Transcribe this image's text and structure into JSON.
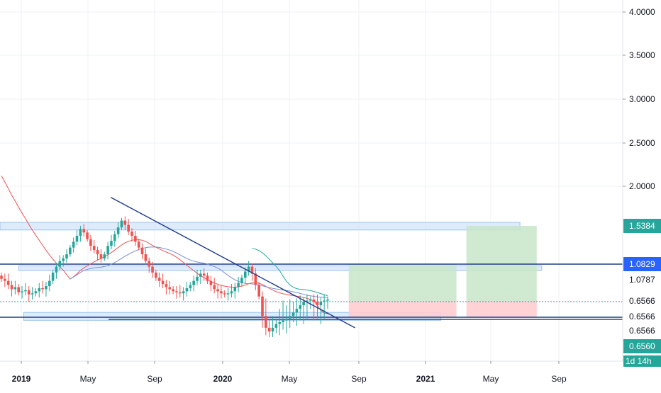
{
  "chart_data": {
    "type": "candlestick",
    "price_axis": {
      "ticks": [
        4.0,
        3.5,
        3.0,
        2.5,
        2.0
      ],
      "tick_labels": [
        "4.0000",
        "3.5000",
        "3.0000",
        "2.5000",
        "2.0000"
      ],
      "ylim_top": 4.06,
      "scale_note": "log-like below 2.0"
    },
    "time_axis": {
      "tick_labels": [
        "2019",
        "May",
        "Sep",
        "2020",
        "May",
        "Sep",
        "2021",
        "May",
        "Sep"
      ],
      "bold": [
        true,
        false,
        false,
        true,
        false,
        false,
        true,
        false,
        false
      ]
    },
    "price_tags": [
      {
        "label": "1.5384",
        "price": 1.5384,
        "color": "#26a69a",
        "text_color": "#ffffff"
      },
      {
        "label": "1.0829",
        "price": 1.0829,
        "color": "#2962ff",
        "text_color": "#ffffff"
      },
      {
        "label": "1.0787",
        "price": 1.0787,
        "color": "#ffffff",
        "text_color": "#131722"
      },
      {
        "label": "0.6566",
        "price": 0.6566,
        "color": "#ffffff",
        "text_color": "#131722"
      },
      {
        "label": "0.6566",
        "price": 0.6566,
        "color": "#ffffff",
        "text_color": "#131722"
      },
      {
        "label": "0.6566",
        "price": 0.6566,
        "color": "#ffffff",
        "text_color": "#131722"
      },
      {
        "label": "0.6560",
        "price": 0.656,
        "color": "#26a69a",
        "text_color": "#ffffff"
      },
      {
        "label": "1d 14h",
        "price": null,
        "color": "#26a69a",
        "text_color": "#ffffff"
      }
    ],
    "series": [
      {
        "name": "",
        "kind": "candles",
        "up_color": "#26a69a",
        "down_color": "#ef5350",
        "close": [
          0.92,
          0.9,
          0.86,
          0.82,
          0.84,
          0.79,
          0.8,
          0.81,
          0.77,
          0.78,
          0.8,
          0.83,
          0.82,
          0.85,
          0.9,
          0.98,
          1.05,
          1.12,
          1.15,
          1.2,
          1.28,
          1.35,
          1.42,
          1.5,
          1.46,
          1.38,
          1.3,
          1.25,
          1.2,
          1.15,
          1.2,
          1.3,
          1.36,
          1.44,
          1.52,
          1.6,
          1.55,
          1.47,
          1.42,
          1.35,
          1.28,
          1.2,
          1.12,
          1.05,
          0.98,
          0.93,
          0.9,
          0.87,
          0.84,
          0.82,
          0.8,
          0.79,
          0.78,
          0.8,
          0.83,
          0.86,
          0.9,
          0.94,
          0.97,
          0.95,
          0.9,
          0.86,
          0.82,
          0.8,
          0.78,
          0.77,
          0.78,
          0.8,
          0.84,
          0.88,
          0.93,
          0.99,
          1.05,
          0.97,
          0.86,
          0.75,
          0.66,
          0.6,
          0.58,
          0.6,
          0.62,
          0.63,
          0.64,
          0.65,
          0.66,
          0.67,
          0.68,
          0.69,
          0.7,
          0.71,
          0.72,
          0.7,
          0.69,
          0.7,
          0.71,
          0.72
        ],
        "high_offset": 0.05,
        "low_offset": 0.05
      },
      {
        "name": "",
        "kind": "ma",
        "color": "#ef5350",
        "window": 20
      },
      {
        "name": "",
        "kind": "ma",
        "color": "#7b8ccf",
        "window": 30
      },
      {
        "name": "",
        "kind": "ma",
        "color": "#26a69a",
        "window": 10
      }
    ],
    "annotations": {
      "zones": [
        {
          "from": 0.0,
          "to": 0.835,
          "p_low": 1.49,
          "p_high": 1.58,
          "color": "#cfe3fa"
        },
        {
          "from": 0.03,
          "to": 0.87,
          "p_low": 1.0,
          "p_high": 1.06,
          "color": "#cfe3fa"
        },
        {
          "from": 0.038,
          "to": 0.708,
          "p_low": 0.64,
          "p_high": 0.67,
          "color": "#cfe3fa"
        }
      ],
      "hlines": [
        {
          "price": 1.0829,
          "style": "solid",
          "color": "#1f3c88"
        },
        {
          "price": 0.6566,
          "style": "solid",
          "color": "#1f3c88"
        },
        {
          "price": 0.7,
          "style": "dotted",
          "color": "#26a69a"
        }
      ],
      "trendline": {
        "from": [
          0.178,
          1.87
        ],
        "to": [
          0.57,
          0.6
        ],
        "color": "#1f3c88"
      },
      "long_positions": [
        {
          "from": 0.56,
          "to": 0.733,
          "entry": 0.7,
          "target": 1.08,
          "stop": 0.6566
        },
        {
          "from": 0.749,
          "to": 0.862,
          "entry": 0.7,
          "target": 1.5384,
          "stop": 0.6566
        }
      ]
    }
  }
}
